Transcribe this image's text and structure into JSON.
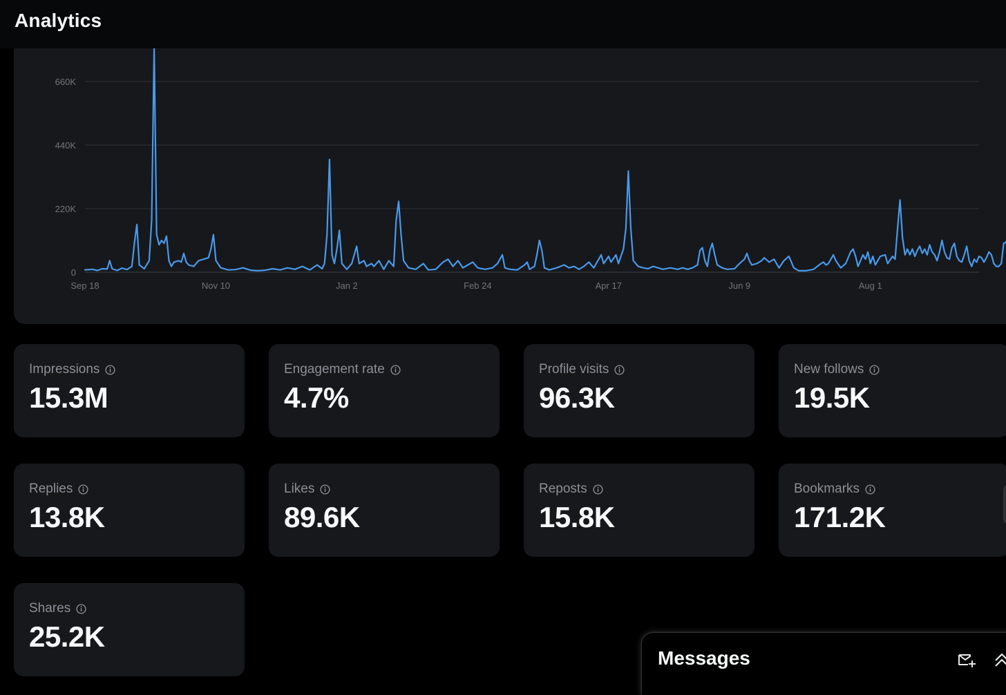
{
  "header": {
    "title": "Analytics"
  },
  "chart_data": {
    "type": "line",
    "title": "",
    "xlabel": "",
    "ylabel": "",
    "color": "#4a99e9",
    "grid": true,
    "x_tick_labels": [
      "Sep 18",
      "Nov 10",
      "Jan 2",
      "Feb 24",
      "Apr 17",
      "Jun 9",
      "Aug 1"
    ],
    "y_tick_labels": [
      "0",
      "220K",
      "440K",
      "660K"
    ],
    "yticks": [
      0,
      220000,
      440000,
      660000
    ],
    "ylim": [
      0,
      780000
    ],
    "x_start": "2023-09-18",
    "x_end": "2024-09-14",
    "series": [
      {
        "values": [
          [
            0,
            8000
          ],
          [
            3,
            10000
          ],
          [
            5,
            6000
          ],
          [
            7,
            12000
          ],
          [
            9,
            11000
          ],
          [
            10,
            40000
          ],
          [
            11,
            12000
          ],
          [
            13,
            6000
          ],
          [
            15,
            14000
          ],
          [
            17,
            9000
          ],
          [
            19,
            20000
          ],
          [
            20,
            100000
          ],
          [
            21,
            165000
          ],
          [
            22,
            25000
          ],
          [
            24,
            12000
          ],
          [
            26,
            40000
          ],
          [
            27,
            180000
          ],
          [
            28,
            780000
          ],
          [
            29,
            130000
          ],
          [
            30,
            95000
          ],
          [
            31,
            110000
          ],
          [
            32,
            100000
          ],
          [
            33,
            125000
          ],
          [
            34,
            40000
          ],
          [
            35,
            20000
          ],
          [
            36,
            35000
          ],
          [
            38,
            40000
          ],
          [
            39,
            35000
          ],
          [
            40,
            65000
          ],
          [
            41,
            35000
          ],
          [
            42,
            25000
          ],
          [
            44,
            20000
          ],
          [
            46,
            40000
          ],
          [
            48,
            45000
          ],
          [
            50,
            50000
          ],
          [
            51,
            80000
          ],
          [
            52,
            130000
          ],
          [
            53,
            40000
          ],
          [
            55,
            15000
          ],
          [
            58,
            8000
          ],
          [
            61,
            9000
          ],
          [
            64,
            15000
          ],
          [
            67,
            7000
          ],
          [
            70,
            5000
          ],
          [
            73,
            7000
          ],
          [
            76,
            12000
          ],
          [
            79,
            8000
          ],
          [
            82,
            15000
          ],
          [
            85,
            10000
          ],
          [
            88,
            20000
          ],
          [
            91,
            8000
          ],
          [
            94,
            25000
          ],
          [
            96,
            12000
          ],
          [
            97,
            30000
          ],
          [
            98,
            130000
          ],
          [
            99,
            390000
          ],
          [
            100,
            60000
          ],
          [
            101,
            30000
          ],
          [
            102,
            80000
          ],
          [
            103,
            145000
          ],
          [
            104,
            30000
          ],
          [
            106,
            10000
          ],
          [
            108,
            30000
          ],
          [
            110,
            90000
          ],
          [
            111,
            30000
          ],
          [
            113,
            40000
          ],
          [
            114,
            20000
          ],
          [
            116,
            30000
          ],
          [
            117,
            20000
          ],
          [
            119,
            40000
          ],
          [
            121,
            10000
          ],
          [
            123,
            40000
          ],
          [
            125,
            20000
          ],
          [
            126,
            180000
          ],
          [
            127,
            245000
          ],
          [
            128,
            130000
          ],
          [
            129,
            40000
          ],
          [
            131,
            15000
          ],
          [
            134,
            10000
          ],
          [
            137,
            30000
          ],
          [
            139,
            8000
          ],
          [
            142,
            10000
          ],
          [
            145,
            35000
          ],
          [
            147,
            45000
          ],
          [
            149,
            20000
          ],
          [
            151,
            40000
          ],
          [
            153,
            15000
          ],
          [
            155,
            25000
          ],
          [
            157,
            35000
          ],
          [
            159,
            15000
          ],
          [
            162,
            10000
          ],
          [
            165,
            15000
          ],
          [
            167,
            30000
          ],
          [
            169,
            60000
          ],
          [
            170,
            15000
          ],
          [
            172,
            10000
          ],
          [
            175,
            8000
          ],
          [
            178,
            25000
          ],
          [
            179,
            35000
          ],
          [
            180,
            10000
          ],
          [
            182,
            20000
          ],
          [
            183,
            60000
          ],
          [
            184,
            110000
          ],
          [
            185,
            75000
          ],
          [
            186,
            15000
          ],
          [
            188,
            8000
          ],
          [
            191,
            15000
          ],
          [
            194,
            25000
          ],
          [
            196,
            15000
          ],
          [
            198,
            20000
          ],
          [
            200,
            10000
          ],
          [
            202,
            20000
          ],
          [
            204,
            35000
          ],
          [
            206,
            15000
          ],
          [
            209,
            60000
          ],
          [
            210,
            30000
          ],
          [
            212,
            55000
          ],
          [
            213,
            35000
          ],
          [
            215,
            60000
          ],
          [
            216,
            30000
          ],
          [
            218,
            80000
          ],
          [
            219,
            150000
          ],
          [
            220,
            350000
          ],
          [
            221,
            150000
          ],
          [
            222,
            40000
          ],
          [
            224,
            20000
          ],
          [
            226,
            15000
          ],
          [
            228,
            12000
          ],
          [
            230,
            20000
          ],
          [
            232,
            15000
          ],
          [
            234,
            10000
          ],
          [
            237,
            15000
          ],
          [
            240,
            10000
          ],
          [
            242,
            15000
          ],
          [
            244,
            10000
          ],
          [
            246,
            15000
          ],
          [
            248,
            25000
          ],
          [
            249,
            75000
          ],
          [
            250,
            85000
          ],
          [
            251,
            40000
          ],
          [
            252,
            20000
          ],
          [
            253,
            75000
          ],
          [
            254,
            100000
          ],
          [
            255,
            60000
          ],
          [
            256,
            25000
          ],
          [
            258,
            15000
          ],
          [
            260,
            10000
          ],
          [
            263,
            12000
          ],
          [
            265,
            30000
          ],
          [
            267,
            45000
          ],
          [
            268,
            65000
          ],
          [
            269,
            40000
          ],
          [
            270,
            25000
          ],
          [
            272,
            30000
          ],
          [
            274,
            40000
          ],
          [
            275,
            50000
          ],
          [
            277,
            35000
          ],
          [
            279,
            45000
          ],
          [
            281,
            15000
          ],
          [
            283,
            40000
          ],
          [
            285,
            55000
          ],
          [
            287,
            15000
          ],
          [
            289,
            5000
          ],
          [
            292,
            5000
          ],
          [
            295,
            10000
          ],
          [
            298,
            30000
          ],
          [
            299,
            35000
          ],
          [
            300,
            25000
          ],
          [
            301,
            30000
          ],
          [
            303,
            60000
          ],
          [
            304,
            40000
          ],
          [
            306,
            15000
          ],
          [
            308,
            30000
          ],
          [
            310,
            70000
          ],
          [
            311,
            80000
          ],
          [
            312,
            55000
          ],
          [
            313,
            20000
          ],
          [
            315,
            60000
          ],
          [
            316,
            45000
          ],
          [
            317,
            70000
          ],
          [
            318,
            30000
          ],
          [
            319,
            55000
          ],
          [
            320,
            25000
          ],
          [
            321,
            40000
          ],
          [
            322,
            55000
          ],
          [
            324,
            60000
          ],
          [
            325,
            30000
          ],
          [
            327,
            55000
          ],
          [
            328,
            45000
          ],
          [
            329,
            150000
          ],
          [
            330,
            250000
          ],
          [
            331,
            120000
          ],
          [
            332,
            60000
          ],
          [
            333,
            80000
          ],
          [
            334,
            60000
          ],
          [
            335,
            80000
          ],
          [
            336,
            55000
          ],
          [
            337,
            75000
          ],
          [
            338,
            90000
          ],
          [
            339,
            65000
          ],
          [
            340,
            80000
          ],
          [
            341,
            60000
          ],
          [
            342,
            95000
          ],
          [
            343,
            70000
          ],
          [
            344,
            60000
          ],
          [
            345,
            40000
          ],
          [
            346,
            70000
          ],
          [
            347,
            110000
          ],
          [
            348,
            70000
          ],
          [
            349,
            50000
          ],
          [
            350,
            45000
          ],
          [
            351,
            85000
          ],
          [
            352,
            100000
          ],
          [
            353,
            55000
          ],
          [
            354,
            40000
          ],
          [
            355,
            35000
          ],
          [
            356,
            60000
          ],
          [
            357,
            90000
          ],
          [
            358,
            40000
          ],
          [
            359,
            20000
          ],
          [
            360,
            45000
          ],
          [
            361,
            35000
          ],
          [
            362,
            55000
          ],
          [
            363,
            50000
          ],
          [
            364,
            35000
          ],
          [
            365,
            50000
          ],
          [
            366,
            70000
          ],
          [
            367,
            60000
          ],
          [
            368,
            30000
          ],
          [
            369,
            20000
          ],
          [
            370,
            20000
          ],
          [
            371,
            30000
          ],
          [
            372,
            100000
          ],
          [
            373,
            105000
          ],
          [
            374,
            50000
          ],
          [
            375,
            65000
          ],
          [
            376,
            90000
          ],
          [
            377,
            50000
          ],
          [
            378,
            55000
          ],
          [
            379,
            60000
          ],
          [
            380,
            70000
          ],
          [
            381,
            80000
          ],
          [
            382,
            135000
          ],
          [
            383,
            70000
          ],
          [
            384,
            60000
          ],
          [
            385,
            80000
          ],
          [
            386,
            155000
          ],
          [
            387,
            80000
          ],
          [
            388,
            55000
          ],
          [
            389,
            40000
          ],
          [
            390,
            50000
          ],
          [
            391,
            35000
          ],
          [
            392,
            65000
          ],
          [
            393,
            50000
          ],
          [
            394,
            35000
          ],
          [
            395,
            70000
          ],
          [
            396,
            65000
          ],
          [
            397,
            55000
          ],
          [
            398,
            45000
          ],
          [
            399,
            40000
          ],
          [
            400,
            35000
          ],
          [
            401,
            35000
          ],
          [
            402,
            40000
          ],
          [
            403,
            45000
          ],
          [
            404,
            50000
          ],
          [
            405,
            45000
          ],
          [
            406,
            55000
          ],
          [
            407,
            60000
          ],
          [
            408,
            50000
          ],
          [
            409,
            35000
          ],
          [
            410,
            30000
          ],
          [
            411,
            25000
          ],
          [
            412,
            40000
          ],
          [
            413,
            55000
          ],
          [
            414,
            50000
          ],
          [
            415,
            45000
          ],
          [
            416,
            35000
          ],
          [
            417,
            20000
          ],
          [
            418,
            35000
          ],
          [
            419,
            30000
          ],
          [
            420,
            25000
          ],
          [
            421,
            20000
          ],
          [
            422,
            35000
          ],
          [
            423,
            25000
          ],
          [
            424,
            40000
          ],
          [
            425,
            35000
          ],
          [
            426,
            10000
          ]
        ]
      }
    ]
  },
  "stats": [
    {
      "label": "Impressions",
      "value": "15.3M"
    },
    {
      "label": "Engagement rate",
      "value": "4.7%"
    },
    {
      "label": "Profile visits",
      "value": "96.3K"
    },
    {
      "label": "New follows",
      "value": "19.5K"
    },
    {
      "label": "Replies",
      "value": "13.8K"
    },
    {
      "label": "Likes",
      "value": "89.6K"
    },
    {
      "label": "Reposts",
      "value": "15.8K"
    },
    {
      "label": "Bookmarks",
      "value": "171.2K"
    },
    {
      "label": "Shares",
      "value": "25.2K"
    }
  ],
  "messages": {
    "title": "Messages",
    "icons": [
      "new-message-icon",
      "expand-up-icon"
    ]
  }
}
